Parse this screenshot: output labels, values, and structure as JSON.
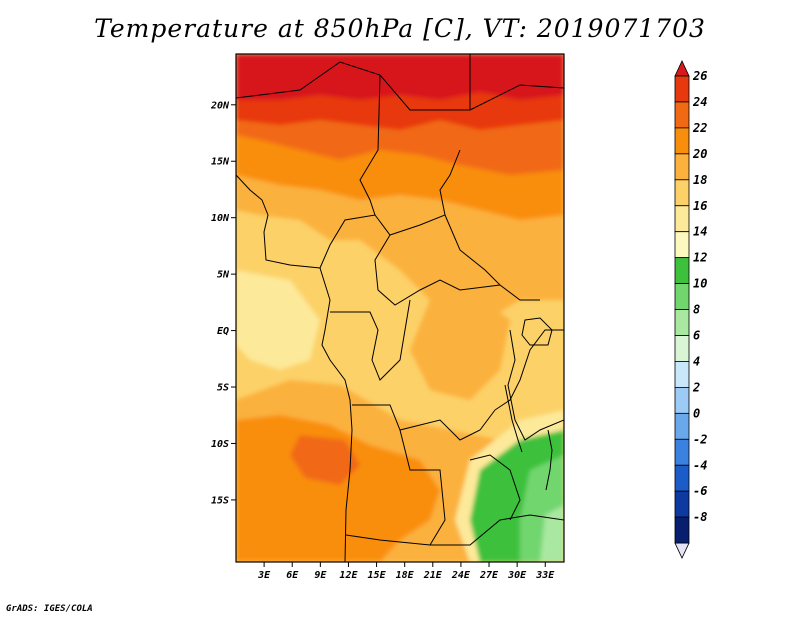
{
  "title": "Temperature at 850hPa [C], VT: 2019071703",
  "credit": "GrADS: IGES/COLA",
  "map": {
    "lat_labels": [
      "20N",
      "15N",
      "10N",
      "5N",
      "EQ",
      "5S",
      "10S",
      "15S"
    ],
    "lon_labels": [
      "3E",
      "6E",
      "9E",
      "12E",
      "15E",
      "18E",
      "21E",
      "24E",
      "27E",
      "30E",
      "33E"
    ],
    "lat_range": [
      -20.5,
      24.5
    ],
    "lon_range": [
      0,
      35
    ]
  },
  "colorbar": {
    "labels": [
      "26",
      "24",
      "22",
      "20",
      "18",
      "16",
      "14",
      "12",
      "10",
      "8",
      "6",
      "4",
      "2",
      "0",
      "-2",
      "-4",
      "-6",
      "-8"
    ],
    "colors": [
      "#d7191c",
      "#e8380e",
      "#f16913",
      "#f98e0d",
      "#fbb13c",
      "#fcd168",
      "#fde99a",
      "#fdf7c0",
      "#3dc13d",
      "#72d66e",
      "#a8e8a0",
      "#daf5d6",
      "#c9e7fb",
      "#9ccbf5",
      "#6aa8ec",
      "#3b82e0",
      "#1c5cc8",
      "#0c3aa0",
      "#081e6e",
      "#e7e3f7"
    ]
  }
}
